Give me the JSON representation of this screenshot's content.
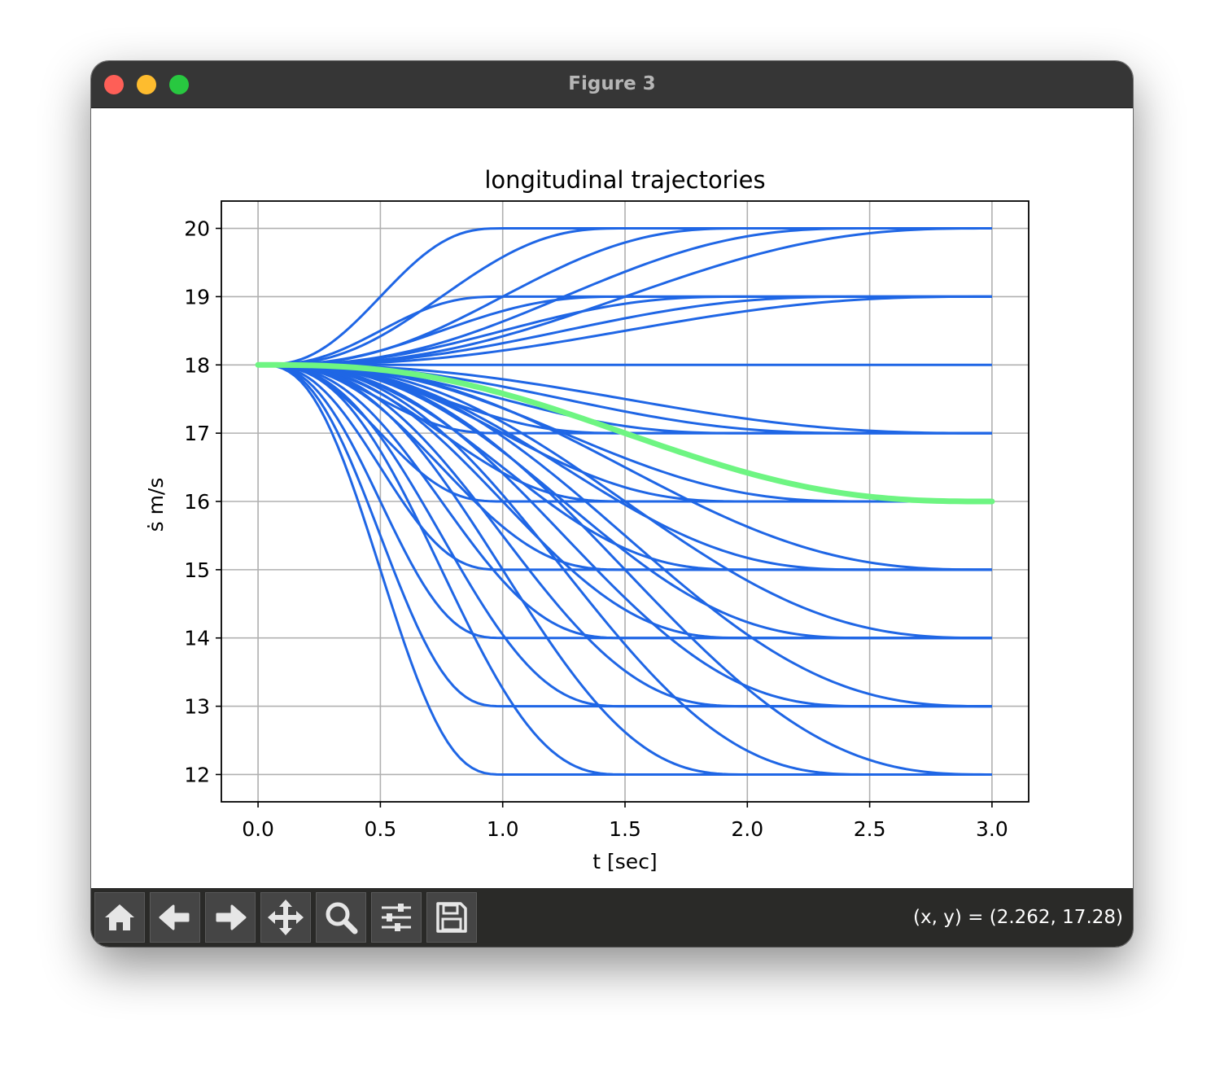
{
  "window": {
    "title": "Figure 3"
  },
  "toolbar": {
    "buttons": [
      {
        "name": "home-button",
        "icon": "home-icon"
      },
      {
        "name": "back-button",
        "icon": "arrow-left-icon"
      },
      {
        "name": "forward-button",
        "icon": "arrow-right-icon"
      },
      {
        "name": "pan-button",
        "icon": "move-icon"
      },
      {
        "name": "zoom-button",
        "icon": "magnifier-icon"
      },
      {
        "name": "configure-subplots-button",
        "icon": "sliders-icon"
      },
      {
        "name": "save-button",
        "icon": "floppy-disk-icon"
      }
    ],
    "coords": "(x, y) = (2.262, 17.28)"
  },
  "chart_data": {
    "type": "line",
    "title": "longitudinal trajectories",
    "xlabel": "t [sec]",
    "ylabel": "ṡ m/s",
    "xlim": [
      -0.15,
      3.15
    ],
    "ylim": [
      11.6,
      20.4
    ],
    "xticks": [
      "0.0",
      "0.5",
      "1.0",
      "1.5",
      "2.0",
      "2.5",
      "3.0"
    ],
    "yticks": [
      "12",
      "13",
      "14",
      "15",
      "16",
      "17",
      "18",
      "19",
      "20"
    ],
    "grid": true,
    "start_value": 18,
    "colors": {
      "candidates": "#1f66e5",
      "selected": "#6ef582"
    },
    "candidates": [
      {
        "final": 20,
        "end_time": 1.0
      },
      {
        "final": 20,
        "end_time": 1.5
      },
      {
        "final": 20,
        "end_time": 2.0
      },
      {
        "final": 20,
        "end_time": 2.5
      },
      {
        "final": 20,
        "end_time": 3.0
      },
      {
        "final": 19,
        "end_time": 1.0
      },
      {
        "final": 19,
        "end_time": 1.5
      },
      {
        "final": 19,
        "end_time": 2.0
      },
      {
        "final": 19,
        "end_time": 2.5
      },
      {
        "final": 19,
        "end_time": 3.0
      },
      {
        "final": 18,
        "end_time": 3.0
      },
      {
        "final": 17,
        "end_time": 1.0
      },
      {
        "final": 17,
        "end_time": 1.5
      },
      {
        "final": 17,
        "end_time": 2.0
      },
      {
        "final": 17,
        "end_time": 2.5
      },
      {
        "final": 17,
        "end_time": 3.0
      },
      {
        "final": 16,
        "end_time": 1.0
      },
      {
        "final": 16,
        "end_time": 1.5
      },
      {
        "final": 16,
        "end_time": 2.0
      },
      {
        "final": 16,
        "end_time": 2.5
      },
      {
        "final": 16,
        "end_time": 3.0
      },
      {
        "final": 15,
        "end_time": 1.0
      },
      {
        "final": 15,
        "end_time": 1.5
      },
      {
        "final": 15,
        "end_time": 2.0
      },
      {
        "final": 15,
        "end_time": 2.5
      },
      {
        "final": 15,
        "end_time": 3.0
      },
      {
        "final": 14,
        "end_time": 1.0
      },
      {
        "final": 14,
        "end_time": 1.5
      },
      {
        "final": 14,
        "end_time": 2.0
      },
      {
        "final": 14,
        "end_time": 2.5
      },
      {
        "final": 14,
        "end_time": 3.0
      },
      {
        "final": 13,
        "end_time": 1.0
      },
      {
        "final": 13,
        "end_time": 1.5
      },
      {
        "final": 13,
        "end_time": 2.0
      },
      {
        "final": 13,
        "end_time": 2.5
      },
      {
        "final": 13,
        "end_time": 3.0
      },
      {
        "final": 12,
        "end_time": 1.0
      },
      {
        "final": 12,
        "end_time": 1.5
      },
      {
        "final": 12,
        "end_time": 2.0
      },
      {
        "final": 12,
        "end_time": 2.5
      },
      {
        "final": 12,
        "end_time": 3.0
      }
    ],
    "selected": {
      "final": 16,
      "end_time": 3.0
    },
    "t_max": 3.0
  }
}
